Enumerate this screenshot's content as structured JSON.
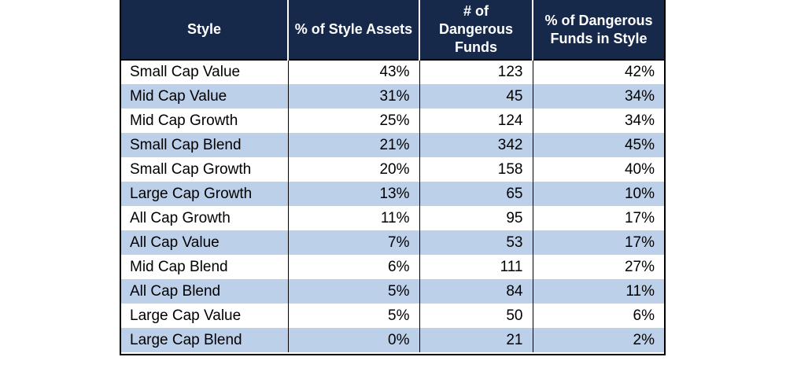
{
  "table": {
    "headers": [
      "Style",
      "% of Style Assets",
      "# of Dangerous Funds",
      "% of Dangerous Funds in Style"
    ],
    "rows": [
      [
        "Small Cap Value",
        "43%",
        "123",
        "42%"
      ],
      [
        "Mid Cap Value",
        "31%",
        "45",
        "34%"
      ],
      [
        "Mid Cap Growth",
        "25%",
        "124",
        "34%"
      ],
      [
        "Small Cap Blend",
        "21%",
        "342",
        "45%"
      ],
      [
        "Small Cap Growth",
        "20%",
        "158",
        "40%"
      ],
      [
        "Large Cap Growth",
        "13%",
        "65",
        "10%"
      ],
      [
        "All Cap Growth",
        "11%",
        "95",
        "17%"
      ],
      [
        "All Cap Value",
        "7%",
        "53",
        "17%"
      ],
      [
        "Mid Cap Blend",
        "6%",
        "111",
        "27%"
      ],
      [
        "All Cap Blend",
        "5%",
        "84",
        "11%"
      ],
      [
        "Large Cap Value",
        "5%",
        "50",
        "6%"
      ],
      [
        "Large Cap Blend",
        "0%",
        "21",
        "2%"
      ]
    ]
  },
  "colors": {
    "header_bg": "#17294b",
    "header_text": "#ffffff",
    "alt_row_bg": "#bdd0ea",
    "row_bg": "#ffffff"
  }
}
